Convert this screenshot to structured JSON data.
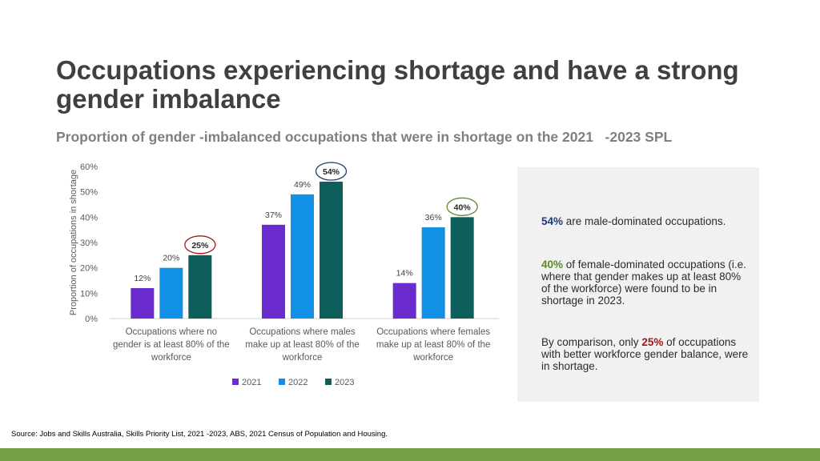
{
  "title": "Occupations experiencing shortage and have a strong gender imbalance",
  "subtitle": "Proportion of gender -imbalanced occupations that were in shortage on the 2021   -2023 SPL",
  "colors": {
    "s2021": "#6a2ccf",
    "s2022": "#1290e6",
    "s2023": "#0c5f5a",
    "footer": "#76a246",
    "male": "#1f3a6e",
    "female": "#5a8a2a",
    "balanced": "#a01818"
  },
  "chart_data": {
    "type": "bar",
    "ylabel": "Proportion of occupations in shortage",
    "ylim": [
      0,
      60
    ],
    "yticks": [
      "0%",
      "10%",
      "20%",
      "30%",
      "40%",
      "50%",
      "60%"
    ],
    "category_lines": [
      [
        "Occupations where no",
        "gender is at least 80% of the",
        "workforce"
      ],
      [
        "Occupations where males",
        "make up at least 80% of the",
        "workforce"
      ],
      [
        "Occupations where females",
        "make up at least 80% of the",
        "workforce"
      ]
    ],
    "series": [
      {
        "name": "2021",
        "values": [
          12,
          37,
          14
        ],
        "labels": [
          "12%",
          "37%",
          "14%"
        ]
      },
      {
        "name": "2022",
        "values": [
          20,
          49,
          36
        ],
        "labels": [
          "20%",
          "49%",
          "36%"
        ]
      },
      {
        "name": "2023",
        "values": [
          25,
          54,
          40
        ],
        "labels": [
          "25%",
          "54%",
          "40%"
        ]
      }
    ],
    "highlight_circles": [
      "#a01818",
      "#1f3a6e",
      "#5a8a2a"
    ]
  },
  "panel": {
    "p1_hl": "54%",
    "p1_rest": " are male-dominated occupations.",
    "p2_hl": "40%",
    "p2_rest": " of female-dominated occupations (i.e. where that gender makes up at least 80% of the workforce) were found to be in shortage in 2023.",
    "p3_pre": "By comparison, only ",
    "p3_hl": "25%",
    "p3_rest": " of occupations with better workforce gender balance, were in shortage."
  },
  "source": "Source: Jobs and Skills Australia, Skills Priority List, 2021 -2023, ABS, 2021 Census of Population and Housing."
}
